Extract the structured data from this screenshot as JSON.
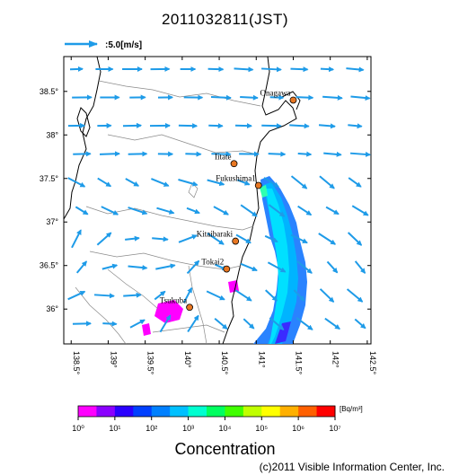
{
  "title": "2011032811(JST)",
  "wind_reference": {
    "label": ":5.0[m/s]",
    "arrow_color": "#1e9be8"
  },
  "map": {
    "lon_range": [
      138.4,
      142.55
    ],
    "lat_range": [
      35.6,
      38.9
    ],
    "lon_ticks": [
      "138.5°",
      "139°",
      "139.5°",
      "140°",
      "140.5°",
      "141°",
      "141.5°",
      "142°",
      "142.5°"
    ],
    "lat_ticks": [
      "38.5°",
      "38°",
      "37.5°",
      "37°",
      "36.5°",
      "36°"
    ],
    "sites": [
      {
        "name": "Onagawa",
        "lon": 141.5,
        "lat": 38.4
      },
      {
        "name": "Iitate",
        "lon": 140.7,
        "lat": 37.67
      },
      {
        "name": "Fukushima1",
        "lon": 141.03,
        "lat": 37.42
      },
      {
        "name": "Kitaibaraki",
        "lon": 140.72,
        "lat": 36.78
      },
      {
        "name": "Tokai2",
        "lon": 140.6,
        "lat": 36.46
      },
      {
        "name": "Tsukuba",
        "lon": 140.1,
        "lat": 36.02
      }
    ],
    "site_marker_color": "#e87722",
    "coast_color": "#000000",
    "prefecture_color": "#808080"
  },
  "colorbar": {
    "unit": "[Bq/m³]",
    "tick_labels": [
      "10⁰",
      "10¹",
      "10²",
      "10³",
      "10⁴",
      "10⁵",
      "10⁶",
      "10⁷"
    ],
    "label": "Concentration",
    "colors": [
      "#ff00ff",
      "#8b00ff",
      "#2a00ff",
      "#0040ff",
      "#0080ff",
      "#00c0ff",
      "#00ffd0",
      "#00ff60",
      "#40ff00",
      "#c0ff00",
      "#ffff00",
      "#ffb000",
      "#ff6000",
      "#ff0000"
    ]
  },
  "copyright": "(c)2011 Visible Information Center, Inc."
}
